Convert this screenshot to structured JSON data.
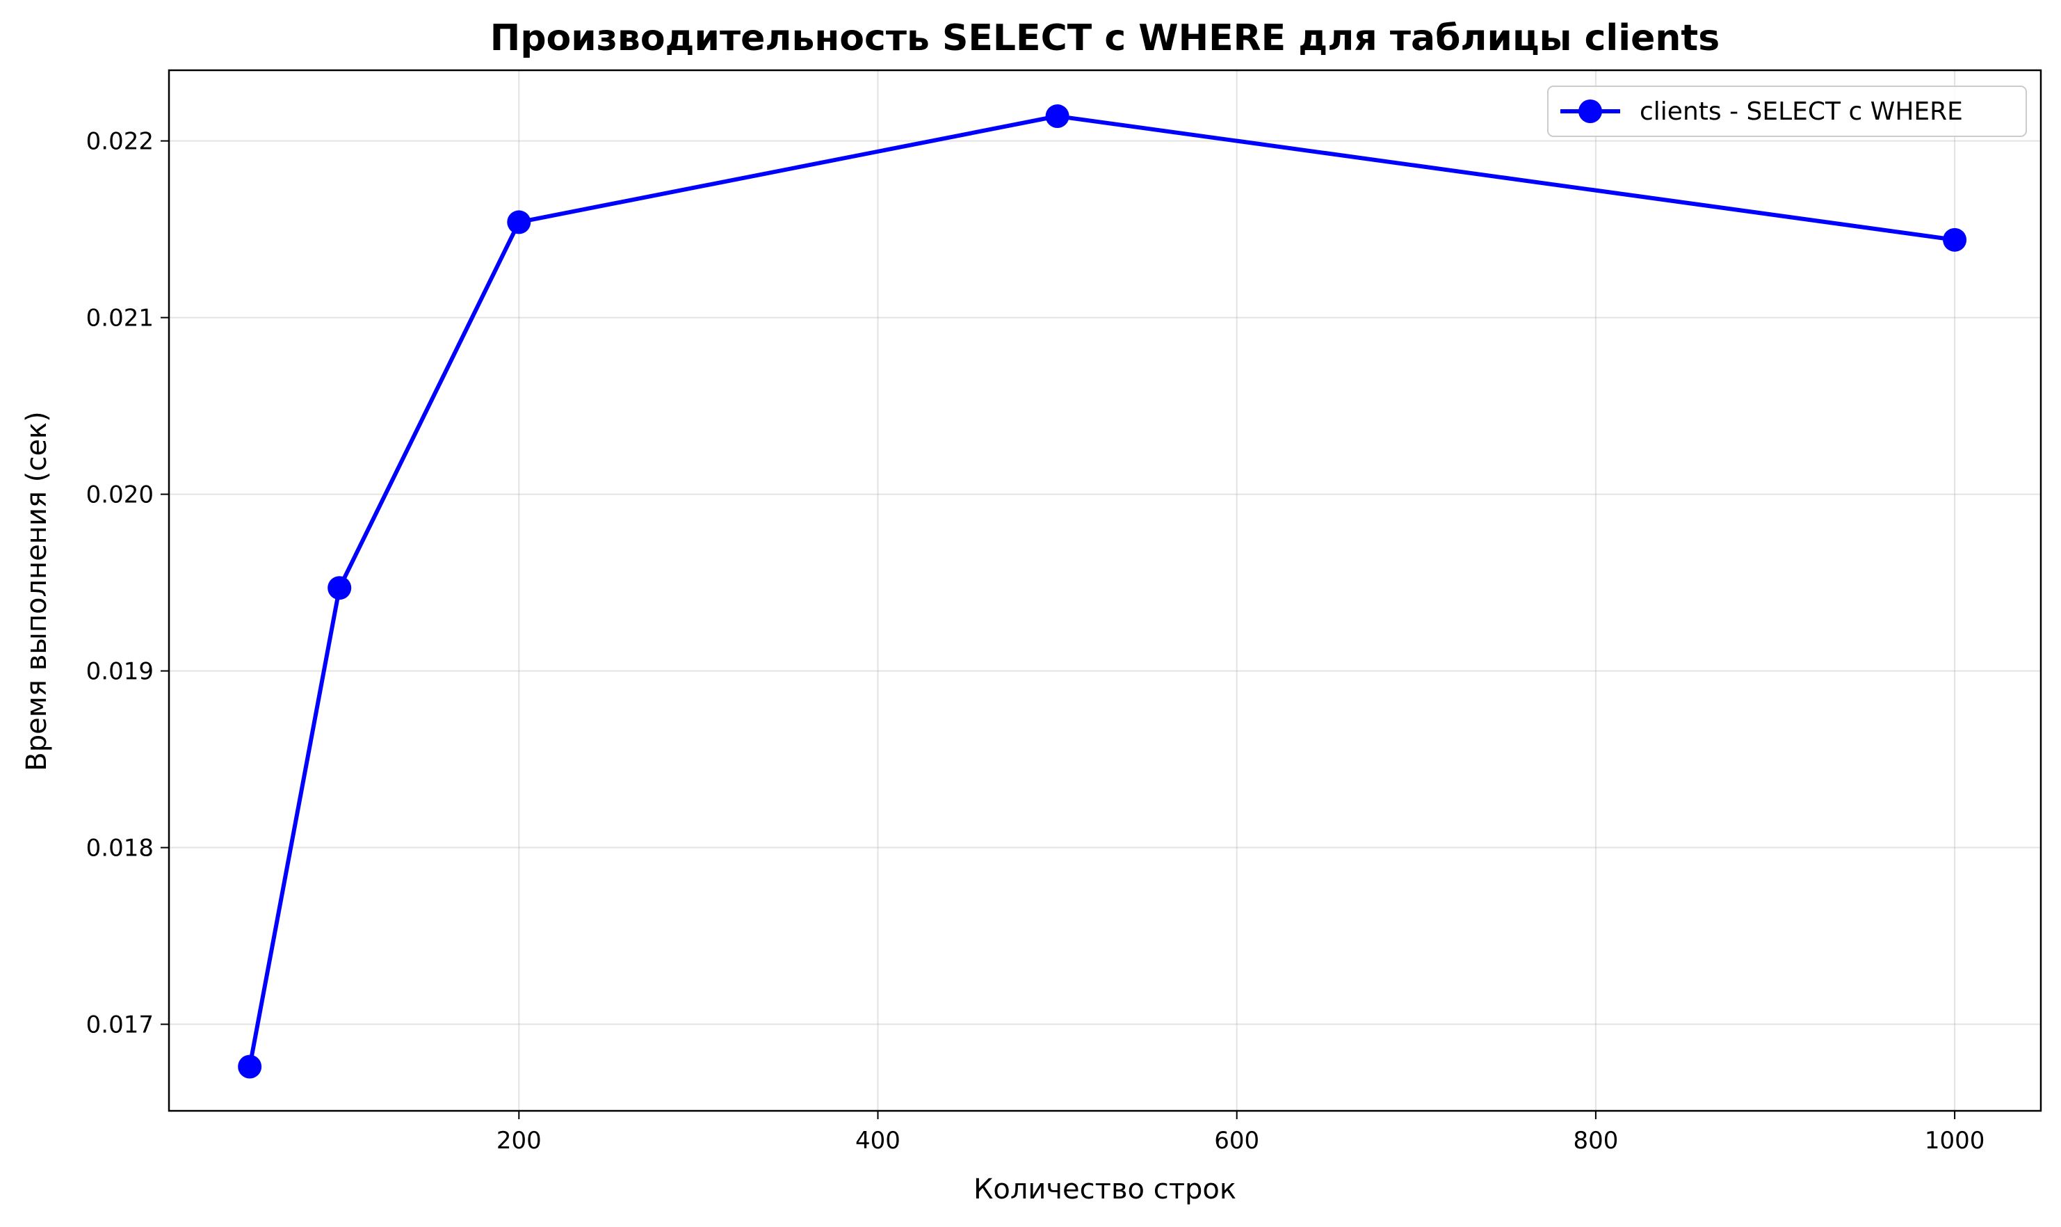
{
  "chart_data": {
    "type": "line",
    "title": "Производительность SELECT с WHERE для таблицы clients",
    "xlabel": "Количество строк",
    "ylabel": "Время выполнения (сек)",
    "xlim": [
      5,
      1048
    ],
    "ylim": [
      0.01651,
      0.0224
    ],
    "x_ticks": [
      200,
      400,
      600,
      800,
      1000
    ],
    "x_tick_labels": [
      "200",
      "400",
      "600",
      "800",
      "1000"
    ],
    "y_ticks": [
      0.017,
      0.018,
      0.019,
      0.02,
      0.021,
      0.022
    ],
    "y_tick_labels": [
      "0.017",
      "0.018",
      "0.019",
      "0.020",
      "0.021",
      "0.022"
    ],
    "grid": true,
    "legend_position": "top-right",
    "series": [
      {
        "name": "clients - SELECT с WHERE",
        "color": "#0000ff",
        "marker": "circle",
        "x": [
          50,
          100,
          200,
          500,
          1000
        ],
        "y": [
          0.01676,
          0.01947,
          0.02154,
          0.02214,
          0.02144
        ]
      }
    ]
  }
}
